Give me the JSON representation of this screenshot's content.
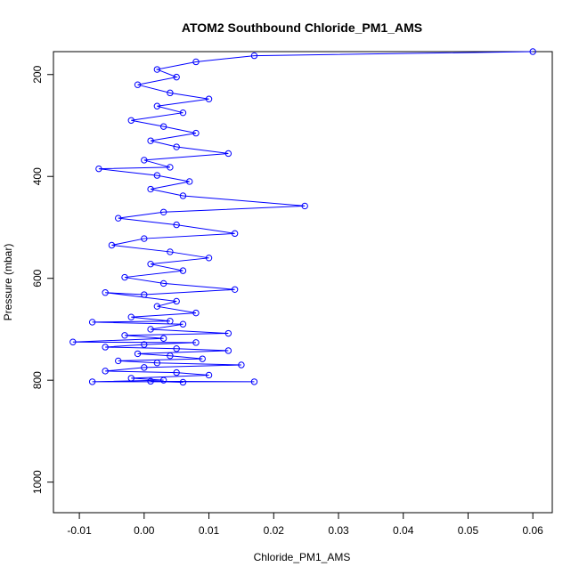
{
  "chart_data": {
    "type": "line",
    "title": "ATOM2 Southbound Chloride_PM1_AMS",
    "xlabel": "Chloride_PM1_AMS",
    "ylabel": "Pressure (mbar)",
    "xlim": [
      -0.014,
      0.063
    ],
    "ylim": [
      1060,
      155
    ],
    "y_reversed": true,
    "x_ticks": [
      -0.01,
      0.0,
      0.01,
      0.02,
      0.03,
      0.04,
      0.05,
      0.06
    ],
    "x_tick_labels": [
      "-0.01",
      "0.00",
      "0.01",
      "0.02",
      "0.03",
      "0.04",
      "0.05",
      "0.06"
    ],
    "y_ticks": [
      200,
      400,
      600,
      800,
      1000
    ],
    "y_tick_labels": [
      "200",
      "400",
      "600",
      "800",
      "1000"
    ],
    "grid": false,
    "legend": "none",
    "colors": {
      "series": "#0000ff",
      "axis": "#000000"
    },
    "series": [
      {
        "values_note": "",
        "points": [
          [
            0.06,
            155
          ],
          [
            0.017,
            163
          ],
          [
            0.008,
            175
          ],
          [
            0.002,
            190
          ],
          [
            0.005,
            205
          ],
          [
            -0.001,
            220
          ],
          [
            0.004,
            236
          ],
          [
            0.01,
            248
          ],
          [
            0.002,
            262
          ],
          [
            0.006,
            275
          ],
          [
            -0.002,
            290
          ],
          [
            0.003,
            302
          ],
          [
            0.008,
            315
          ],
          [
            0.001,
            330
          ],
          [
            0.005,
            342
          ],
          [
            0.013,
            355
          ],
          [
            0.0,
            368
          ],
          [
            0.004,
            382
          ],
          [
            -0.007,
            385
          ],
          [
            0.002,
            398
          ],
          [
            0.007,
            410
          ],
          [
            0.001,
            425
          ],
          [
            0.006,
            438
          ],
          [
            0.0248,
            458
          ],
          [
            0.003,
            470
          ],
          [
            -0.004,
            482
          ],
          [
            0.005,
            495
          ],
          [
            0.014,
            512
          ],
          [
            0.0,
            522
          ],
          [
            -0.005,
            535
          ],
          [
            0.004,
            548
          ],
          [
            0.01,
            560
          ],
          [
            0.001,
            572
          ],
          [
            0.006,
            585
          ],
          [
            -0.003,
            598
          ],
          [
            0.003,
            610
          ],
          [
            0.014,
            622
          ],
          [
            0.0,
            632
          ],
          [
            -0.006,
            628
          ],
          [
            0.005,
            645
          ],
          [
            0.002,
            655
          ],
          [
            0.008,
            668
          ],
          [
            -0.002,
            676
          ],
          [
            0.004,
            684
          ],
          [
            -0.008,
            686
          ],
          [
            0.006,
            690
          ],
          [
            0.001,
            700
          ],
          [
            0.013,
            708
          ],
          [
            -0.003,
            712
          ],
          [
            0.003,
            718
          ],
          [
            -0.011,
            725
          ],
          [
            0.008,
            726
          ],
          [
            0.0,
            730
          ],
          [
            -0.006,
            735
          ],
          [
            0.005,
            738
          ],
          [
            0.013,
            742
          ],
          [
            -0.001,
            748
          ],
          [
            0.004,
            752
          ],
          [
            0.009,
            758
          ],
          [
            -0.004,
            762
          ],
          [
            0.002,
            766
          ],
          [
            0.015,
            770
          ],
          [
            0.0,
            775
          ],
          [
            -0.006,
            782
          ],
          [
            0.005,
            785
          ],
          [
            0.01,
            790
          ],
          [
            -0.002,
            796
          ],
          [
            0.003,
            800
          ],
          [
            -0.008,
            803
          ],
          [
            0.017,
            803
          ],
          [
            0.001,
            802
          ],
          [
            0.006,
            804
          ]
        ]
      }
    ]
  }
}
